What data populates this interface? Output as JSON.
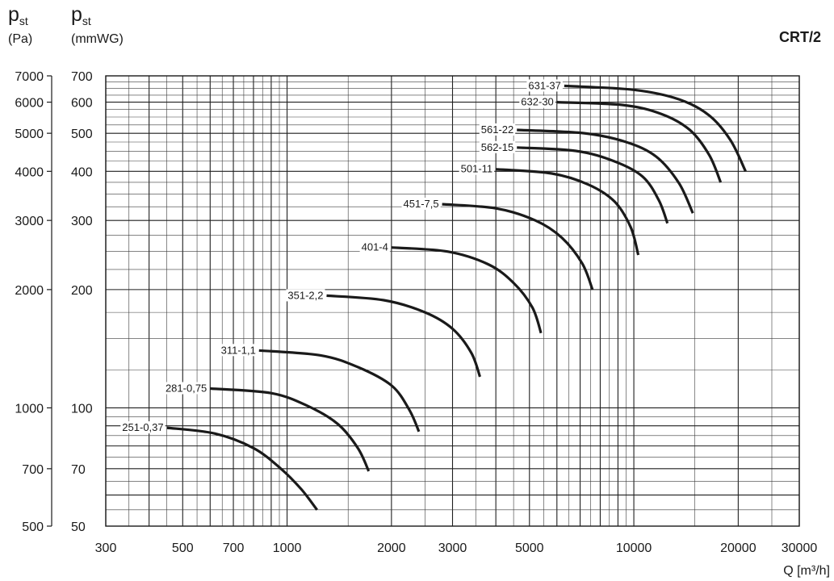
{
  "header": {
    "pa_symbol": "p",
    "pa_sub": "st",
    "pa_unit": "(Pa)",
    "mm_symbol": "p",
    "mm_sub": "st",
    "mm_unit": "(mmWG)"
  },
  "chart_data": {
    "type": "line",
    "title": "CRT/2",
    "xlabel": "Q [m³/h]",
    "ylabel_left": "p st (Pa)",
    "ylabel_right": "p st (mmWG)",
    "x_scale": "log",
    "y_scale": "log",
    "xlim": [
      300,
      30000
    ],
    "ylim_mmwg": [
      50,
      700
    ],
    "ylim_pa": [
      500,
      7000
    ],
    "grid": true,
    "x_ticks": [
      "300",
      "500",
      "700",
      "1000",
      "2000",
      "3000",
      "5000",
      "10000",
      "20000",
      "30000"
    ],
    "y_ticks_pa": [
      "7000",
      "6000",
      "5000",
      "4000",
      "3000",
      "2000",
      "1000",
      "700",
      "500"
    ],
    "y_ticks_mmwg": [
      "700",
      "600",
      "500",
      "400",
      "300",
      "200",
      "100",
      "70",
      "50"
    ],
    "series": [
      {
        "name": "251-0,37",
        "Q_max_free": 450,
        "Q": [
          450,
          620,
          800,
          960,
          1100,
          1220
        ],
        "p": [
          89,
          86,
          79,
          70,
          62,
          55
        ]
      },
      {
        "name": "281-0,75",
        "Q": [
          600,
          900,
          1150,
          1400,
          1600,
          1720
        ],
        "p": [
          112,
          109,
          101,
          91,
          79,
          69
        ]
      },
      {
        "name": "311-1,1",
        "Q": [
          830,
          1250,
          1600,
          2000,
          2250,
          2400
        ],
        "p": [
          140,
          136,
          127,
          114,
          99,
          87
        ]
      },
      {
        "name": "351-2,2",
        "Q": [
          1300,
          1900,
          2500,
          3000,
          3400,
          3600
        ],
        "p": [
          193,
          188,
          175,
          159,
          138,
          120
        ]
      },
      {
        "name": "401-4",
        "Q": [
          2000,
          2900,
          3800,
          4500,
          5100,
          5400
        ],
        "p": [
          256,
          250,
          232,
          208,
          180,
          155
        ]
      },
      {
        "name": "451-7,5",
        "Q": [
          2800,
          4000,
          5200,
          6200,
          7100,
          7600
        ],
        "p": [
          330,
          322,
          300,
          271,
          233,
          200
        ]
      },
      {
        "name": "501-11",
        "Q": [
          4000,
          5800,
          7400,
          8800,
          9800,
          10300
        ],
        "p": [
          405,
          395,
          370,
          335,
          288,
          245
        ]
      },
      {
        "name": "562-15",
        "Q": [
          4600,
          6800,
          8800,
          10600,
          11800,
          12500
        ],
        "p": [
          460,
          451,
          424,
          388,
          338,
          295
        ]
      },
      {
        "name": "561-22",
        "Q": [
          4600,
          7200,
          9500,
          11600,
          13500,
          14800
        ],
        "p": [
          510,
          500,
          475,
          436,
          373,
          313
        ]
      },
      {
        "name": "632-30",
        "Q": [
          6000,
          9300,
          12000,
          14500,
          16500,
          17800
        ],
        "p": [
          600,
          590,
          560,
          510,
          440,
          375
        ]
      },
      {
        "name": "631-37",
        "Q": [
          6300,
          10000,
          13500,
          16500,
          19000,
          21000
        ],
        "p": [
          660,
          645,
          610,
          555,
          480,
          400
        ]
      }
    ]
  }
}
